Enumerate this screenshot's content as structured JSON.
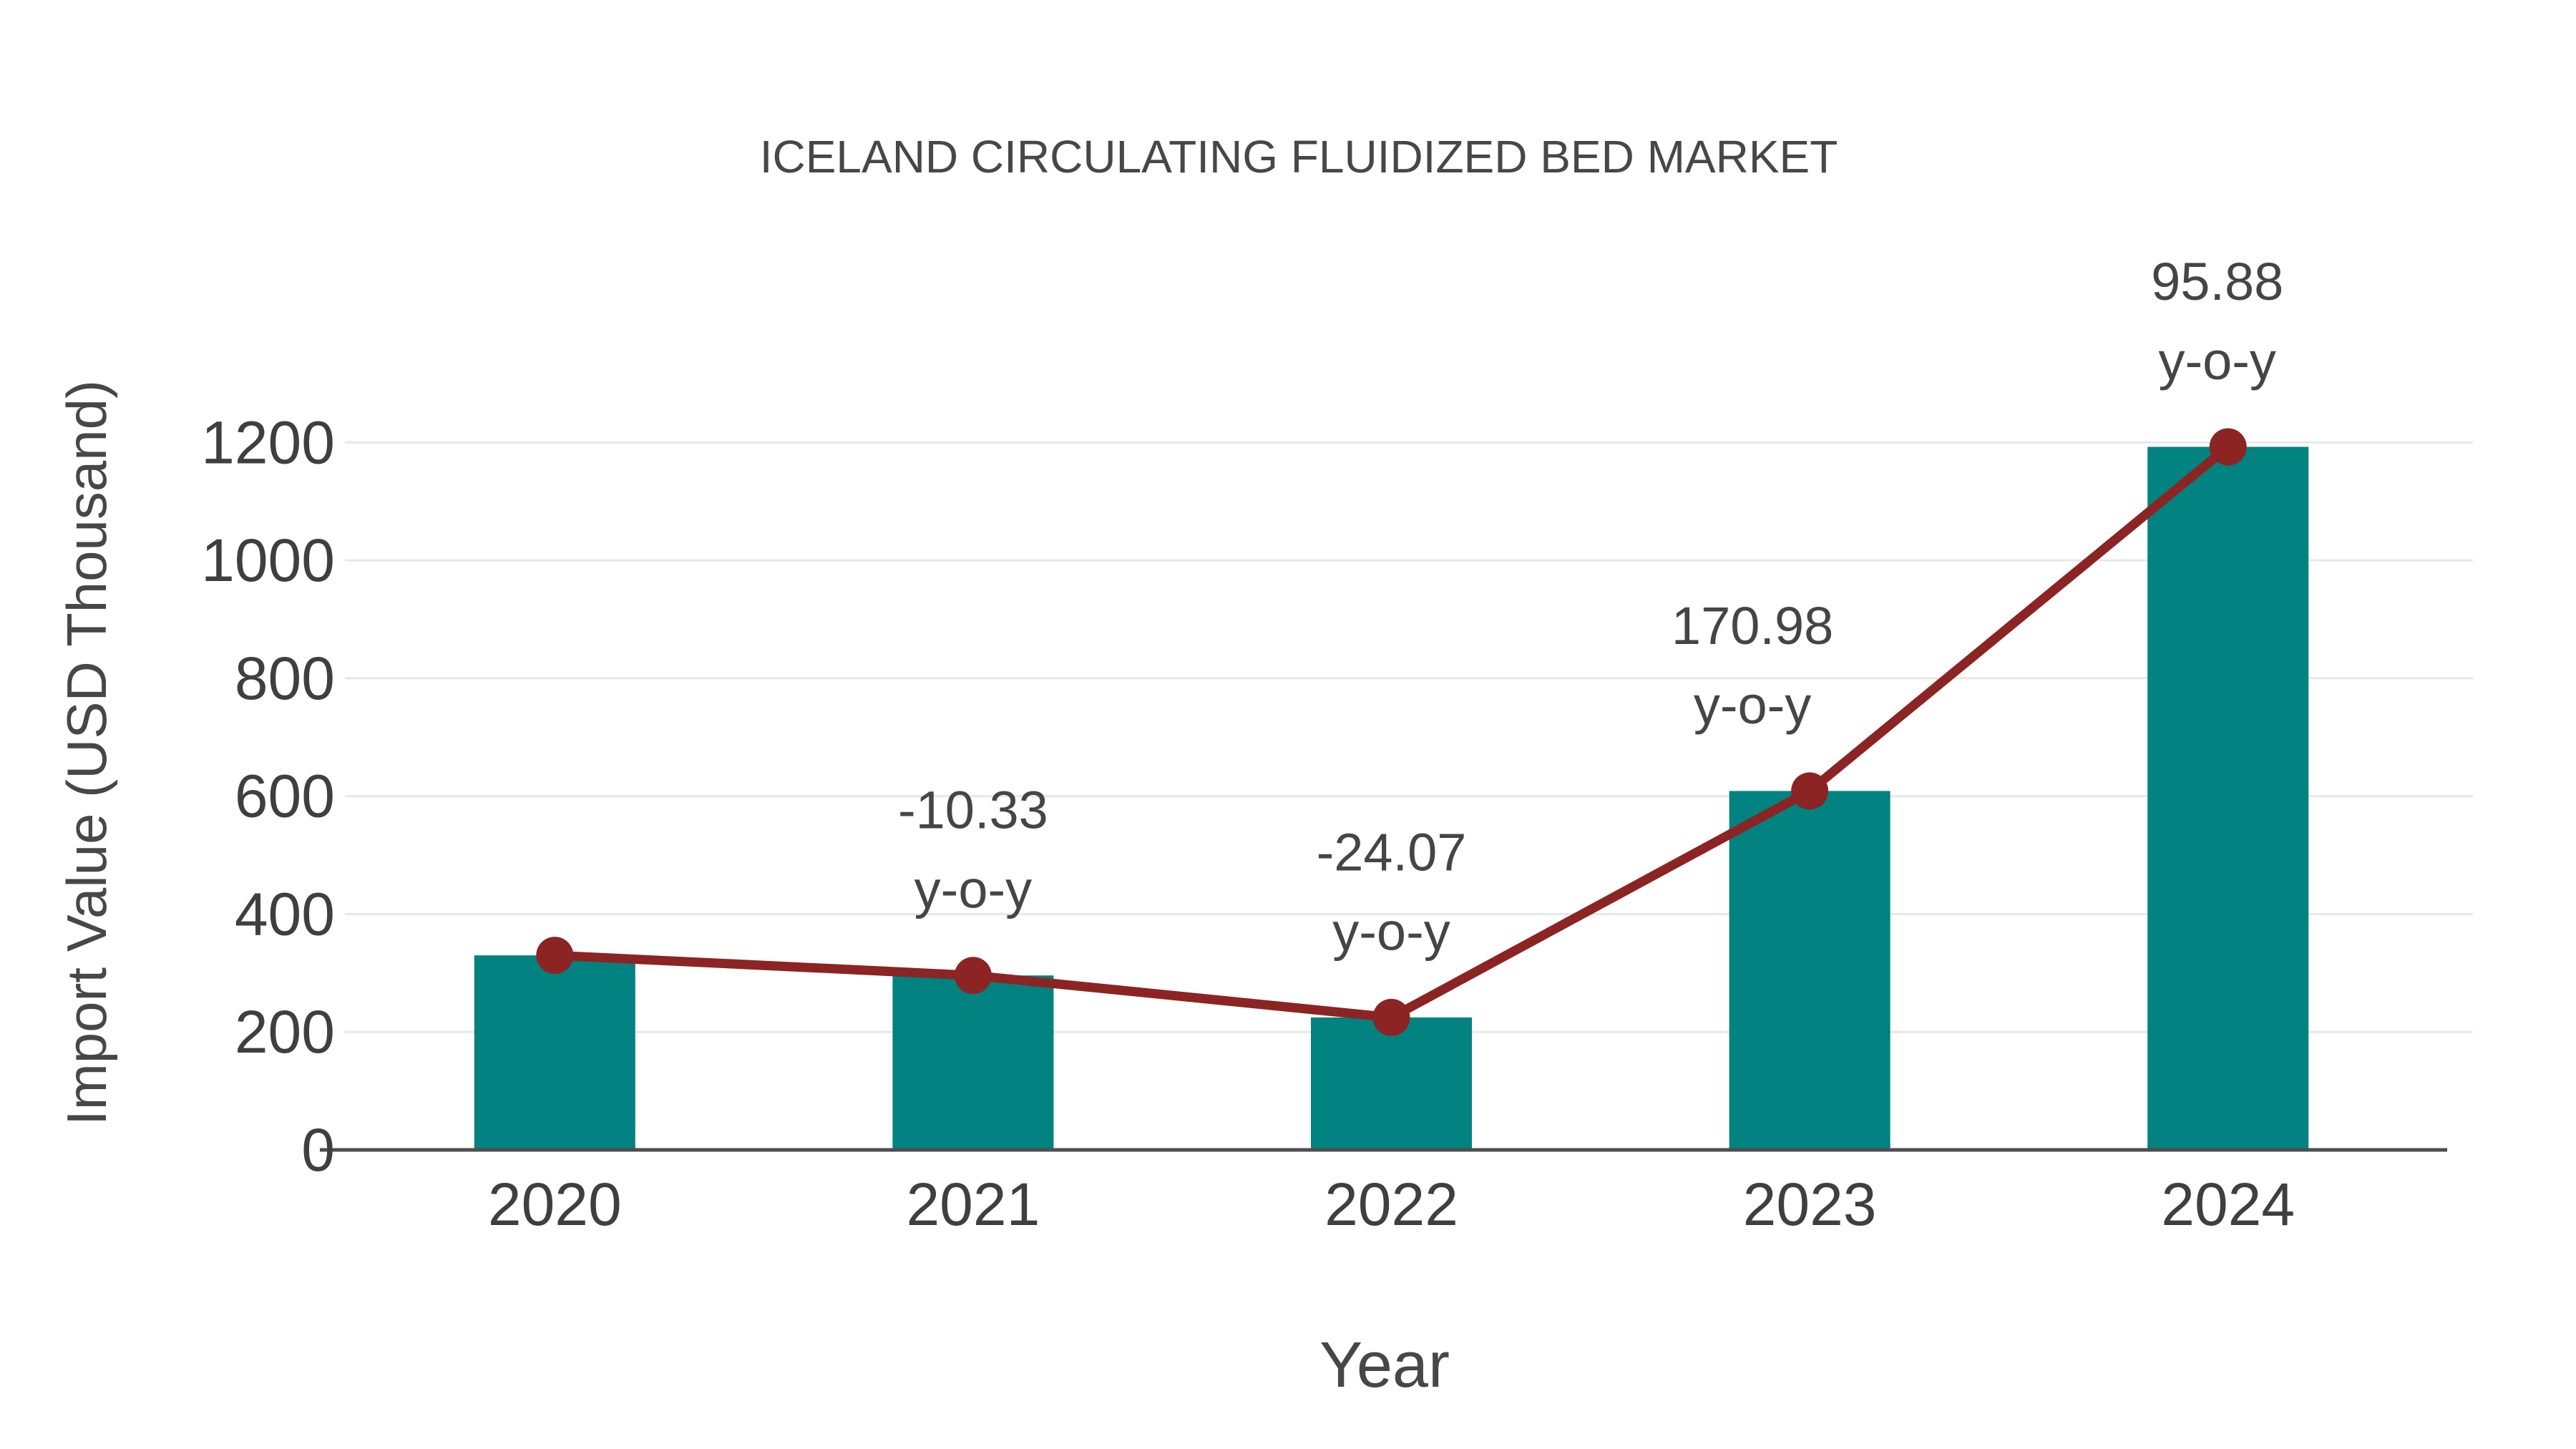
{
  "chart_data": {
    "type": "bar+line",
    "title": "ICELAND CIRCULATING FLUIDIZED BED MARKET",
    "xlabel": "Year",
    "ylabel": "Import Value (USD Thousand)",
    "categories": [
      "2020",
      "2021",
      "2022",
      "2023",
      "2024"
    ],
    "series": [
      {
        "name": "Import Value bars",
        "type": "bar",
        "values": [
          330,
          295.91,
          224.68,
          608.85,
          1192.62
        ]
      },
      {
        "name": "Import Value trend line",
        "type": "line",
        "values": [
          330,
          295.91,
          224.68,
          608.85,
          1192.62
        ]
      }
    ],
    "annotations": [
      {
        "category": "2021",
        "line1": "-10.33",
        "line2": "y-o-y"
      },
      {
        "category": "2022",
        "line1": "-24.07",
        "line2": "y-o-y"
      },
      {
        "category": "2023",
        "line1": "170.98",
        "line2": "y-o-y"
      },
      {
        "category": "2024",
        "line1": "95.88",
        "line2": "y-o-y"
      }
    ],
    "yticks": [
      0,
      200,
      400,
      600,
      800,
      1000,
      1200
    ],
    "ylim": [
      0,
      1300
    ],
    "grid": true,
    "legend_position": "none",
    "colors": {
      "bar": "#028280",
      "line": "#8B2423",
      "marker": "#8B2423",
      "title_text": "#474747",
      "axis_title_text": "#474747",
      "tick_text": "#3F3F3F",
      "annotation_text": "#454545",
      "gridline": "#E8E8E8",
      "axis_line": "#4D4D4D",
      "background": "#FFFFFF"
    }
  }
}
